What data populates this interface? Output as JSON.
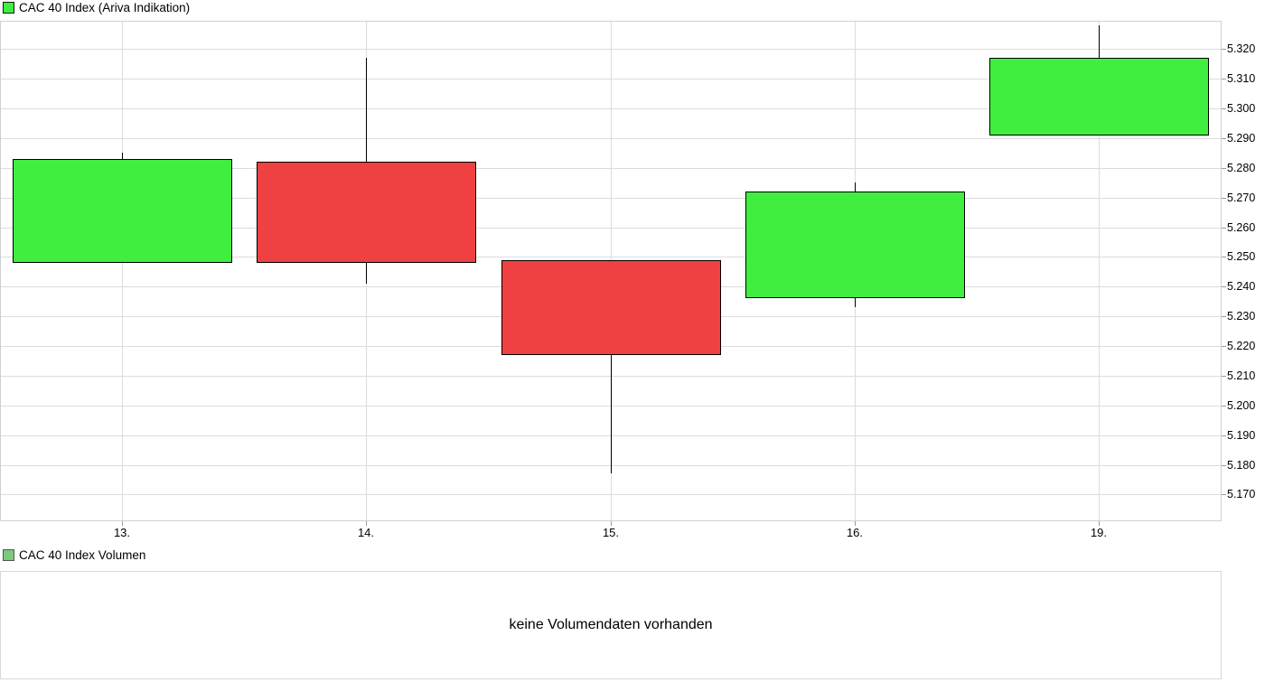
{
  "price_chart": {
    "legend": {
      "label": "CAC 40 Index (Ariva Indikation)",
      "swatch_color": "#3fee3f",
      "swatch_border": "#1a1a1a"
    }
  },
  "volume_chart": {
    "legend": {
      "label": "CAC 40 Index Volumen",
      "swatch_color": "#7bc97b",
      "swatch_border": "#555555"
    },
    "empty_message": "keine Volumendaten vorhanden"
  },
  "colors": {
    "candle_up": "#3fee3f",
    "candle_down": "#ef4141",
    "candle_outline": "#000000",
    "grid": "#dcdcdc",
    "plot_border": "#d0d0d0",
    "axis_tick": "#9a9a9a",
    "text": "#000000",
    "background": "#ffffff"
  },
  "chart_data": {
    "type": "candlestick",
    "title": "CAC 40 Index (Ariva Indikation)",
    "categories": [
      "13.",
      "14.",
      "15.",
      "16.",
      "19."
    ],
    "series": [
      {
        "name": "CAC 40 Index (Ariva Indikation)",
        "candles": [
          {
            "x": "13.",
            "open": 5248,
            "high": 5285,
            "low": 5248,
            "close": 5283,
            "direction": "up"
          },
          {
            "x": "14.",
            "open": 5282,
            "high": 5317,
            "low": 5241,
            "close": 5248,
            "direction": "down"
          },
          {
            "x": "15.",
            "open": 5249,
            "high": 5249,
            "low": 5177,
            "close": 5217,
            "direction": "down"
          },
          {
            "x": "16.",
            "open": 5236,
            "high": 5275,
            "low": 5233,
            "close": 5272,
            "direction": "up"
          },
          {
            "x": "19.",
            "open": 5291,
            "high": 5328,
            "low": 5291,
            "close": 5317,
            "direction": "up"
          }
        ]
      }
    ],
    "y_axis": {
      "side": "right",
      "ylim": [
        5161,
        5329.5
      ],
      "ticks": [
        {
          "value": 5170,
          "label": "5.170"
        },
        {
          "value": 5180,
          "label": "5.180"
        },
        {
          "value": 5190,
          "label": "5.190"
        },
        {
          "value": 5200,
          "label": "5.200"
        },
        {
          "value": 5210,
          "label": "5.210"
        },
        {
          "value": 5220,
          "label": "5.220"
        },
        {
          "value": 5230,
          "label": "5.230"
        },
        {
          "value": 5240,
          "label": "5.240"
        },
        {
          "value": 5250,
          "label": "5.250"
        },
        {
          "value": 5260,
          "label": "5.260"
        },
        {
          "value": 5270,
          "label": "5.270"
        },
        {
          "value": 5280,
          "label": "5.280"
        },
        {
          "value": 5290,
          "label": "5.290"
        },
        {
          "value": 5300,
          "label": "5.300"
        },
        {
          "value": 5310,
          "label": "5.310"
        },
        {
          "value": 5320,
          "label": "5.320"
        }
      ]
    },
    "x_axis": {
      "ticks": [
        "13.",
        "14.",
        "15.",
        "16.",
        "19."
      ]
    },
    "grid": true,
    "legend_position": "top-left",
    "volume_panel": {
      "title": "CAC 40 Index Volumen",
      "message": "keine Volumendaten vorhanden",
      "data": []
    }
  }
}
